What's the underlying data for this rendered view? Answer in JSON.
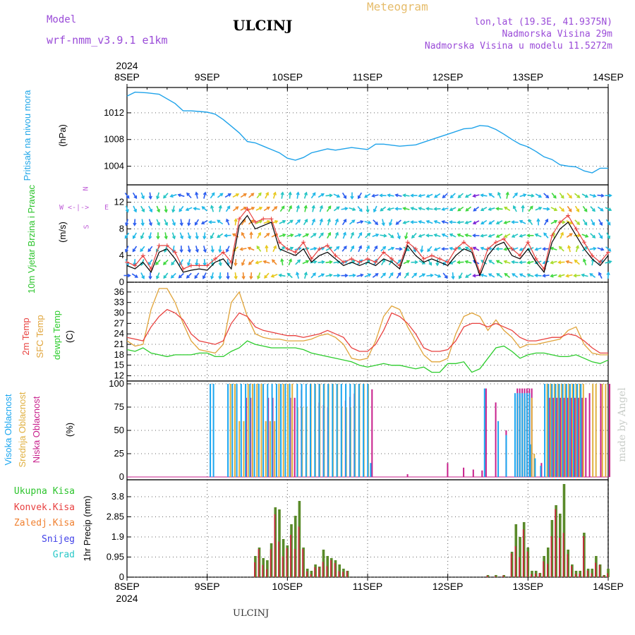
{
  "header": {
    "model_label": "Model",
    "model_name": "wrf-nmm_v3.9.1  e1km",
    "station": "ULCINJ",
    "product": "Meteogram",
    "lonlat": "lon,lat (19.3E, 41.9375N)",
    "elevation": "Nadmorska Visina 29m",
    "model_elevation": "Nadmorska Visina u modelu 11.5272m"
  },
  "footer": {
    "station": "ULCINJ",
    "credit": "made by Angel"
  },
  "colors": {
    "pressure": "#1fa3ea",
    "temp2m": "#e8413f",
    "sfc": "#e0a43a",
    "dewpt": "#2ccc2c",
    "high_cloud": "#1aa6f0",
    "mid_cloud": "#e0b040",
    "low_cloud": "#c8208c",
    "total_precip": "#5a8a2a",
    "conv_precip": "#c8283c"
  },
  "chart_data": [
    {
      "id": "time_axis",
      "type": "table",
      "year": "2024",
      "tick_labels": [
        "8SEP",
        "9SEP",
        "10SEP",
        "11SEP",
        "12SEP",
        "13SEP",
        "14SEP"
      ]
    },
    {
      "id": "pressure",
      "type": "line",
      "ylabel": "Pritisak na nivou mora",
      "unit": "(hPa)",
      "yticks": [
        1004,
        1008,
        1012
      ],
      "ylim": [
        1001.2,
        1015.8
      ],
      "x": [
        0,
        0.1,
        0.25,
        0.4,
        0.6,
        0.7,
        0.8,
        0.9,
        1.0,
        1.1,
        1.2,
        1.3,
        1.4,
        1.5,
        1.6,
        1.7,
        1.8,
        1.9,
        2.0,
        2.1,
        2.2,
        2.3,
        2.4,
        2.5,
        2.6,
        2.8,
        3.0,
        3.1,
        3.2,
        3.4,
        3.6,
        3.8,
        4.0,
        4.2,
        4.3,
        4.4,
        4.5,
        4.6,
        4.7,
        4.8,
        4.9,
        5.0,
        5.1,
        5.2,
        5.3,
        5.4,
        5.5,
        5.6,
        5.7,
        5.8,
        5.9,
        6.0
      ],
      "values": [
        1014.5,
        1015.1,
        1015.0,
        1014.8,
        1013.4,
        1012.3,
        1012.3,
        1012.2,
        1012.1,
        1011.8,
        1011.0,
        1010.0,
        1009.0,
        1007.7,
        1007.5,
        1007.0,
        1006.5,
        1006.0,
        1005.2,
        1004.9,
        1005.3,
        1006.0,
        1006.3,
        1006.6,
        1006.4,
        1006.8,
        1006.5,
        1007.3,
        1007.3,
        1007.0,
        1007.2,
        1008.0,
        1008.8,
        1009.6,
        1009.7,
        1010.1,
        1010.0,
        1009.5,
        1008.8,
        1008.0,
        1007.3,
        1006.9,
        1006.2,
        1005.4,
        1005.0,
        1004.2,
        1004.0,
        1003.9,
        1003.3,
        1003.0,
        1003.7,
        1003.7
      ]
    },
    {
      "id": "wind",
      "type": "line",
      "ylabel": "10m Vjetar Brzina i Pravac",
      "unit": "(m/s)",
      "compass": {
        "n": "N",
        "w": "W",
        "e": "E",
        "s": "S"
      },
      "yticks": [
        0,
        4,
        8,
        12
      ],
      "ylim": [
        0,
        14.6
      ],
      "x": [
        0,
        0.1,
        0.2,
        0.3,
        0.4,
        0.5,
        0.6,
        0.7,
        0.8,
        0.9,
        1.0,
        1.1,
        1.2,
        1.3,
        1.4,
        1.5,
        1.6,
        1.7,
        1.8,
        1.9,
        2.0,
        2.1,
        2.2,
        2.3,
        2.4,
        2.5,
        2.6,
        2.7,
        2.8,
        2.9,
        3.0,
        3.1,
        3.2,
        3.3,
        3.4,
        3.5,
        3.6,
        3.7,
        3.8,
        3.9,
        4.0,
        4.1,
        4.2,
        4.3,
        4.4,
        4.5,
        4.6,
        4.7,
        4.8,
        4.9,
        5.0,
        5.1,
        5.2,
        5.3,
        5.4,
        5.5,
        5.6,
        5.7,
        5.8,
        5.9,
        6.0
      ],
      "speed": [
        2.5,
        2.0,
        3.0,
        1.5,
        4.5,
        5.0,
        3.5,
        1.5,
        1.8,
        2.0,
        1.8,
        3.0,
        3.5,
        2.0,
        8.5,
        10.0,
        8.0,
        8.5,
        9.0,
        5.0,
        4.5,
        4.0,
        5.0,
        3.0,
        4.0,
        4.5,
        3.5,
        2.5,
        3.0,
        2.5,
        3.0,
        2.5,
        3.5,
        3.0,
        2.0,
        5.5,
        4.0,
        3.0,
        3.5,
        3.0,
        2.5,
        4.0,
        5.0,
        4.5,
        1.0,
        4.0,
        5.5,
        6.0,
        4.0,
        3.5,
        5.0,
        3.0,
        1.5,
        6.0,
        8.0,
        9.0,
        7.0,
        5.0,
        3.5,
        2.5,
        4.0
      ],
      "gust": [
        3.0,
        2.5,
        4.0,
        2.0,
        5.5,
        5.5,
        4.5,
        2.0,
        2.5,
        2.5,
        2.5,
        3.5,
        4.5,
        3.0,
        9.5,
        11.0,
        9.0,
        9.5,
        9.5,
        6.0,
        5.0,
        4.5,
        6.0,
        3.5,
        5.0,
        5.5,
        4.0,
        3.0,
        3.5,
        3.0,
        3.5,
        3.0,
        4.5,
        3.5,
        2.5,
        6.0,
        5.0,
        3.5,
        4.0,
        3.5,
        3.0,
        5.0,
        6.0,
        5.0,
        1.5,
        5.0,
        6.0,
        6.5,
        5.0,
        4.0,
        6.0,
        3.5,
        2.0,
        7.0,
        9.0,
        10.0,
        8.0,
        6.0,
        4.0,
        3.0,
        4.5
      ],
      "arrow_rows": [
        1,
        3,
        5,
        7,
        9,
        11,
        13
      ]
    },
    {
      "id": "temperature",
      "type": "line",
      "series_labels": [
        "2m Temp",
        "SFC Temp",
        "dewpt Temp"
      ],
      "unit": "(C)",
      "yticks": [
        12,
        15,
        18,
        21,
        24,
        27,
        30,
        33,
        36
      ],
      "ylim": [
        10.5,
        38.8
      ],
      "x": [
        0,
        0.1,
        0.2,
        0.3,
        0.4,
        0.5,
        0.6,
        0.7,
        0.8,
        0.9,
        1.0,
        1.1,
        1.2,
        1.3,
        1.4,
        1.5,
        1.6,
        1.7,
        1.8,
        1.9,
        2.0,
        2.1,
        2.2,
        2.3,
        2.4,
        2.5,
        2.6,
        2.7,
        2.8,
        2.9,
        3.0,
        3.1,
        3.2,
        3.3,
        3.4,
        3.5,
        3.6,
        3.7,
        3.8,
        3.9,
        4.0,
        4.1,
        4.2,
        4.3,
        4.4,
        4.5,
        4.6,
        4.7,
        4.8,
        4.9,
        5.0,
        5.1,
        5.2,
        5.3,
        5.4,
        5.5,
        5.6,
        5.7,
        5.8,
        5.9,
        6.0
      ],
      "t2m": [
        23,
        22.5,
        22,
        26,
        29,
        31,
        30,
        28,
        24,
        22,
        21.5,
        21,
        22,
        27,
        30,
        29,
        26,
        25,
        24.5,
        24,
        23.5,
        23.5,
        23,
        23.5,
        24,
        25,
        24,
        23,
        20,
        19,
        19,
        21,
        25,
        30,
        29,
        27,
        24,
        20,
        19,
        19,
        19.5,
        22,
        26,
        27,
        27,
        26,
        27,
        26,
        25,
        23,
        22,
        22,
        22.5,
        23,
        23,
        24,
        23.5,
        22,
        20,
        18.5,
        18.5
      ],
      "sfc": [
        22,
        20.5,
        21,
        31,
        37,
        37,
        33,
        27,
        22,
        19.5,
        19,
        18.5,
        21,
        33,
        36,
        29,
        24,
        23,
        22.5,
        22.5,
        22,
        22,
        22,
        22.5,
        23.5,
        24,
        23,
        21,
        17,
        16.5,
        17,
        22,
        29,
        32,
        31,
        26,
        22,
        18,
        16,
        16,
        17,
        24,
        29,
        30,
        29,
        25,
        28,
        25,
        23,
        20,
        21,
        21,
        21.5,
        22,
        22.5,
        25,
        26,
        21,
        18.5,
        18,
        18
      ],
      "dewpt": [
        19.5,
        19,
        20,
        18.5,
        18,
        17.5,
        18,
        18,
        18,
        18.5,
        18.5,
        17.5,
        17.5,
        19,
        20,
        22,
        21,
        20.5,
        20,
        20,
        20,
        20,
        19.5,
        18.5,
        18,
        17.5,
        17,
        16.5,
        16,
        15,
        14.5,
        15,
        15.5,
        15,
        15,
        14.5,
        14,
        14.5,
        13,
        13,
        15.5,
        15.5,
        16,
        13,
        14,
        17,
        20,
        20.5,
        19,
        17,
        18,
        18.5,
        18.5,
        18,
        17.5,
        17.5,
        18,
        17,
        16,
        15.5,
        16.5
      ]
    },
    {
      "id": "clouds",
      "type": "bar",
      "series_labels": [
        "Visoka Oblacnost",
        "Srednja Oblacnost",
        "Niska Oblacnost"
      ],
      "unit": "(%)",
      "yticks": [
        0,
        25,
        50,
        75,
        100
      ],
      "ylim": [
        -3,
        103
      ]
    },
    {
      "id": "precip",
      "type": "bar",
      "ylabel": "1hr Precip",
      "unit": "(mm)",
      "legend": [
        "Ukupna Kisa",
        "Konvek.Kisa",
        "Zaledj.Kisa",
        "Snijeg",
        "Grad"
      ],
      "legend_colors": [
        "#2cc42c",
        "#e84040",
        "#f08030",
        "#4040e8",
        "#28c8c8"
      ],
      "yticks": [
        "0",
        "0.95",
        "1.9",
        "2.85",
        "3.8"
      ],
      "ylim": [
        0,
        4.6
      ],
      "x": [
        1.6,
        1.65,
        1.7,
        1.75,
        1.8,
        1.85,
        1.9,
        1.95,
        2.0,
        2.05,
        2.1,
        2.15,
        2.2,
        2.25,
        2.3,
        2.35,
        2.4,
        2.45,
        2.5,
        2.55,
        2.6,
        2.65,
        2.7,
        2.75,
        4.5,
        4.6,
        4.7,
        4.8,
        4.85,
        4.9,
        4.95,
        5.0,
        5.05,
        5.1,
        5.15,
        5.2,
        5.25,
        5.3,
        5.35,
        5.4,
        5.45,
        5.5,
        5.55,
        5.6,
        5.65,
        5.7,
        5.75,
        5.8,
        5.85,
        5.9,
        5.95,
        6.0
      ],
      "values": [
        1.0,
        1.4,
        0.9,
        0.8,
        1.6,
        3.3,
        3.2,
        1.8,
        1.5,
        2.5,
        2.9,
        3.6,
        1.4,
        0.4,
        0.3,
        0.6,
        0.5,
        1.3,
        1.0,
        0.9,
        0.8,
        0.6,
        0.4,
        0.3,
        0.1,
        0.1,
        0.1,
        1.2,
        2.5,
        1.9,
        2.6,
        1.4,
        0.3,
        0.3,
        0.2,
        1.0,
        1.4,
        2.7,
        3.4,
        3.0,
        4.4,
        1.3,
        0.6,
        0.3,
        0.3,
        2.1,
        0.4,
        0.4,
        1.0,
        0.6,
        0.1,
        0.4
      ]
    }
  ]
}
